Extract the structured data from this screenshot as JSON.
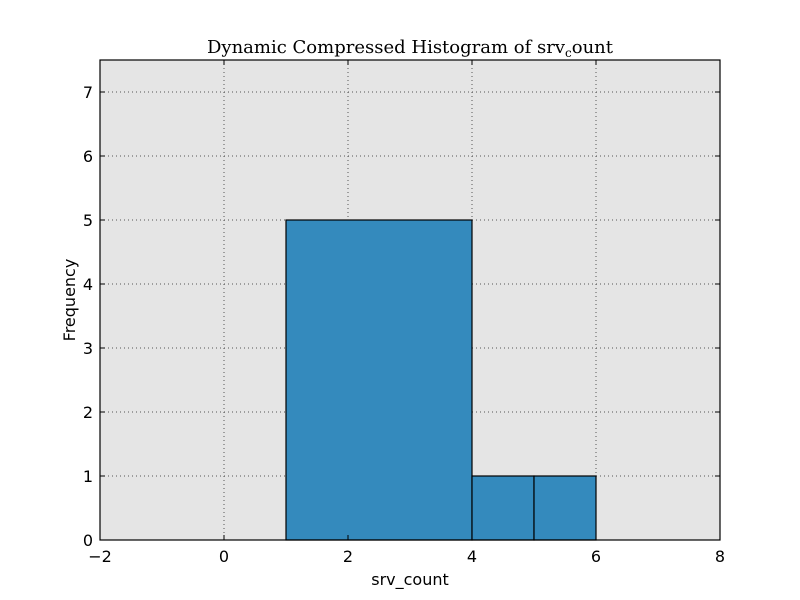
{
  "chart_data": {
    "type": "bar",
    "title": "Dynamic Compressed Histogram of srv",
    "title_subscript": "c",
    "title_suffix": "ount",
    "xlabel": "srv_count",
    "ylabel": "Frequency",
    "bins": [
      {
        "start": 1,
        "end": 4,
        "value": 5
      },
      {
        "start": 4,
        "end": 5,
        "value": 1
      },
      {
        "start": 5,
        "end": 6,
        "value": 1
      }
    ],
    "xlim": [
      -2,
      8
    ],
    "ylim": [
      0,
      7.5
    ],
    "xticks": [
      -2,
      0,
      2,
      4,
      6,
      8
    ],
    "xtick_labels": [
      "−2",
      "0",
      "2",
      "4",
      "6",
      "8"
    ],
    "yticks": [
      0,
      1,
      2,
      3,
      4,
      5,
      6,
      7
    ],
    "ytick_labels": [
      "0",
      "1",
      "2",
      "3",
      "4",
      "5",
      "6",
      "7"
    ],
    "grid": true,
    "legend": "none"
  },
  "colors": {
    "bar_fill": "#348abd",
    "bar_edge": "#000000",
    "plot_background": "#e5e5e5",
    "grid": "#555555",
    "frame": "#000000"
  }
}
